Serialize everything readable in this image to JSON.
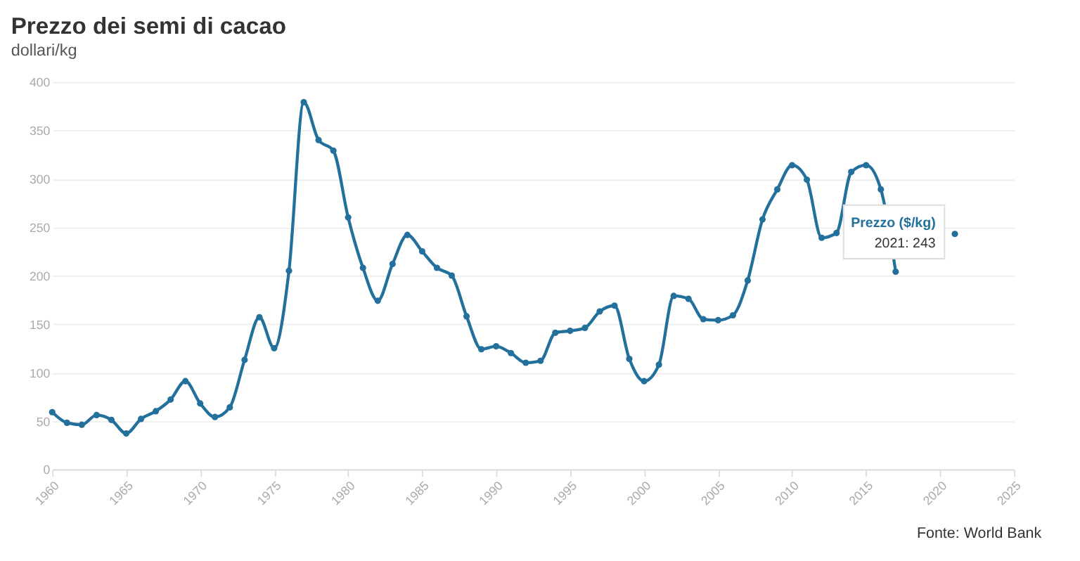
{
  "chart_data": {
    "type": "line",
    "title": "Prezzo dei semi di cacao",
    "subtitle": "dollari/kg",
    "x": [
      1960,
      1961,
      1962,
      1963,
      1964,
      1965,
      1966,
      1967,
      1968,
      1969,
      1970,
      1971,
      1972,
      1973,
      1974,
      1975,
      1976,
      1977,
      1978,
      1979,
      1980,
      1981,
      1982,
      1983,
      1984,
      1985,
      1986,
      1987,
      1988,
      1989,
      1990,
      1991,
      1992,
      1993,
      1994,
      1995,
      1996,
      1997,
      1998,
      1999,
      2000,
      2001,
      2002,
      2003,
      2004,
      2005,
      2006,
      2007,
      2008,
      2009,
      2010,
      2011,
      2012,
      2013,
      2014,
      2015,
      2016,
      2017,
      2018,
      2019,
      2020,
      2021
    ],
    "values": [
      59,
      48,
      46,
      56,
      51,
      37,
      52,
      60,
      72,
      91,
      68,
      54,
      64,
      113,
      157,
      125,
      205,
      379,
      340,
      329,
      260,
      208,
      174,
      212,
      242,
      225,
      208,
      200,
      158,
      124,
      127,
      120,
      110,
      112,
      141,
      143,
      146,
      163,
      169,
      114,
      91,
      108,
      179,
      176,
      155,
      154,
      159,
      195,
      258,
      289,
      314,
      299,
      239,
      244,
      307,
      314,
      289,
      204,
      null,
      null,
      null,
      243
    ],
    "color": "#23709c",
    "marker": "circle",
    "line_style": "solid",
    "xlim": [
      1960,
      2025
    ],
    "xticks": [
      1960,
      1965,
      1970,
      1975,
      1980,
      1985,
      1990,
      1995,
      2000,
      2005,
      2010,
      2015,
      2020,
      2025
    ],
    "ylim": [
      0,
      400
    ],
    "yticks": [
      0,
      50,
      100,
      150,
      200,
      250,
      300,
      350,
      400
    ],
    "grid": "y",
    "annotations": [
      "Fonte: World Bank",
      {
        "text": "Prezzo ($/kg)",
        "x": 2021,
        "y": 243
      },
      {
        "text": "2021: 243",
        "x": 2021,
        "y": 243
      }
    ]
  }
}
